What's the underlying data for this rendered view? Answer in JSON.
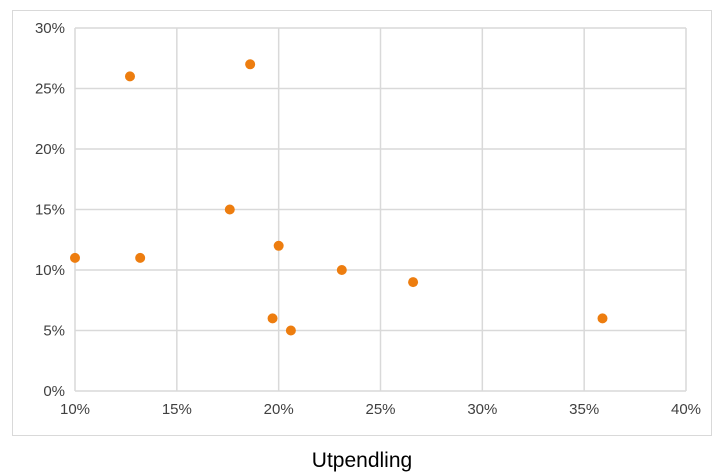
{
  "chart_data": {
    "type": "scatter",
    "title": "",
    "xlabel": "Utpendling",
    "ylabel": "",
    "xlim": [
      0.1,
      0.4
    ],
    "ylim": [
      0.0,
      0.3
    ],
    "x_ticks": [
      0.1,
      0.15,
      0.2,
      0.25,
      0.3,
      0.35,
      0.4
    ],
    "y_ticks": [
      0.0,
      0.05,
      0.1,
      0.15,
      0.2,
      0.25,
      0.3
    ],
    "x_tick_labels": [
      "10%",
      "15%",
      "20%",
      "25%",
      "30%",
      "35%",
      "40%"
    ],
    "y_tick_labels": [
      "0%",
      "5%",
      "10%",
      "15%",
      "20%",
      "25%",
      "30%"
    ],
    "grid": true,
    "legend": "none",
    "series": [
      {
        "marker_color": "#ED7D0F",
        "points": [
          {
            "x": 0.1,
            "y": 0.11
          },
          {
            "x": 0.127,
            "y": 0.26
          },
          {
            "x": 0.132,
            "y": 0.11
          },
          {
            "x": 0.176,
            "y": 0.15
          },
          {
            "x": 0.186,
            "y": 0.27
          },
          {
            "x": 0.197,
            "y": 0.06
          },
          {
            "x": 0.2,
            "y": 0.12
          },
          {
            "x": 0.206,
            "y": 0.05
          },
          {
            "x": 0.231,
            "y": 0.1
          },
          {
            "x": 0.266,
            "y": 0.09
          },
          {
            "x": 0.359,
            "y": 0.06
          }
        ]
      }
    ]
  },
  "colors": {
    "grid": "#d9d9d9",
    "marker": "#ED7D0F",
    "frame": "#d9d9d9"
  }
}
